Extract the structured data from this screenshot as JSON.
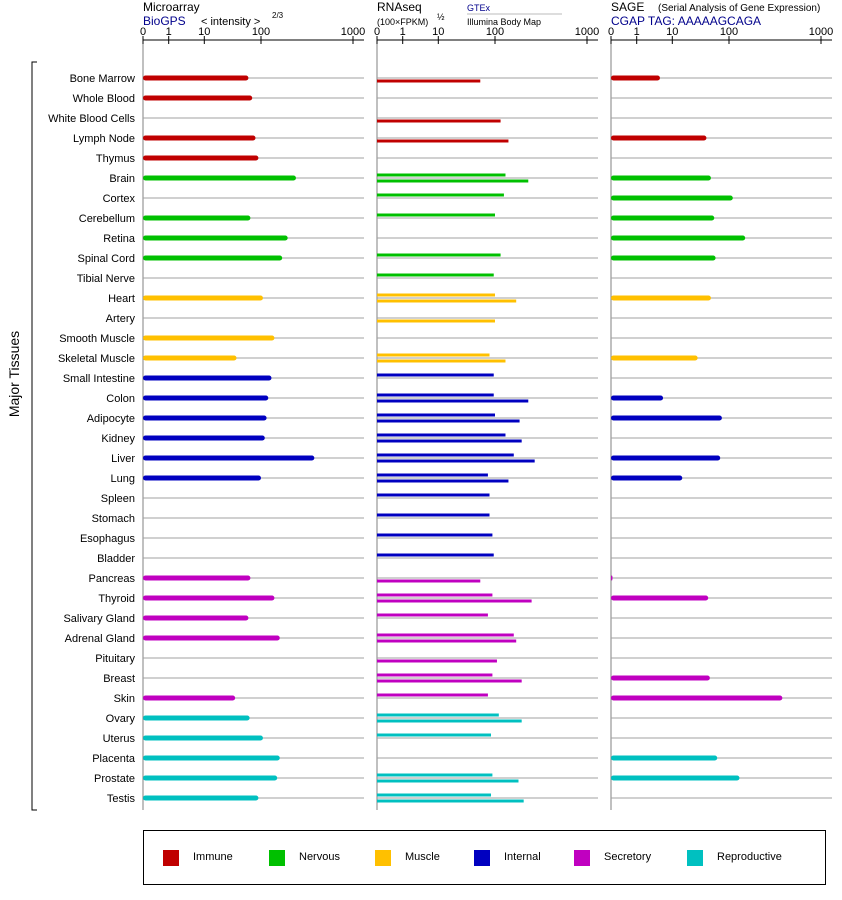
{
  "panels": [
    {
      "title": "Microarray",
      "subtitle": "BioGPS",
      "unit": "< intensity >",
      "unit_exp": "2/3",
      "subtitle2": ""
    },
    {
      "title": "RNAseq",
      "subtitle": "(100×FPKM)",
      "unit": "",
      "unit_exp": "½",
      "source1": "GTEx",
      "source2": "Illumina Body Map"
    },
    {
      "title": "SAGE",
      "subtitle": "CGAP TAG: AAAAAGCAGA",
      "unit": "(Serial Analysis of Gene Expression)",
      "unit_exp": ""
    }
  ],
  "tick_labels": [
    "0",
    "1",
    "10",
    "100",
    "1000"
  ],
  "y_axis_label": "Major Tissues",
  "colors": {
    "Immune": "#c00000",
    "Nervous": "#00c000",
    "Muscle": "#ffc000",
    "Internal": "#0000c0",
    "Secretory": "#c000c0",
    "Reproductive": "#00c0c0"
  },
  "legend": [
    "Immune",
    "Nervous",
    "Muscle",
    "Internal",
    "Secretory",
    "Reproductive"
  ],
  "chart_data": {
    "type": "bar",
    "orientation": "horizontal",
    "scale": "log-like (0,1,10,100,1000)",
    "xlim": [
      0,
      1000
    ],
    "categories": [
      "Bone Marrow",
      "Whole Blood",
      "White Blood Cells",
      "Lymph Node",
      "Thymus",
      "Brain",
      "Cortex",
      "Cerebellum",
      "Retina",
      "Spinal Cord",
      "Tibial Nerve",
      "Heart",
      "Artery",
      "Smooth Muscle",
      "Skeletal Muscle",
      "Small Intestine",
      "Colon",
      "Adipocyte",
      "Kidney",
      "Liver",
      "Lung",
      "Spleen",
      "Stomach",
      "Esophagus",
      "Bladder",
      "Pancreas",
      "Thyroid",
      "Salivary Gland",
      "Adrenal Gland",
      "Pituitary",
      "Breast",
      "Skin",
      "Ovary",
      "Uterus",
      "Placenta",
      "Prostate",
      "Testis"
    ],
    "groups": [
      "Immune",
      "Immune",
      "Immune",
      "Immune",
      "Immune",
      "Nervous",
      "Nervous",
      "Nervous",
      "Nervous",
      "Nervous",
      "Nervous",
      "Muscle",
      "Muscle",
      "Muscle",
      "Muscle",
      "Internal",
      "Internal",
      "Internal",
      "Internal",
      "Internal",
      "Internal",
      "Internal",
      "Internal",
      "Internal",
      "Internal",
      "Secretory",
      "Secretory",
      "Secretory",
      "Secretory",
      "Secretory",
      "Secretory",
      "Secretory",
      "Reproductive",
      "Reproductive",
      "Reproductive",
      "Reproductive",
      "Reproductive"
    ],
    "series": [
      {
        "name": "Microarray",
        "values": [
          60,
          70,
          null,
          80,
          90,
          240,
          null,
          65,
          195,
          170,
          null,
          105,
          null,
          140,
          37,
          130,
          120,
          115,
          110,
          380,
          100,
          null,
          null,
          null,
          null,
          65,
          140,
          60,
          160,
          null,
          null,
          35,
          63,
          105,
          160,
          150,
          90
        ]
      },
      {
        "name": "GTEx",
        "values": [
          null,
          null,
          null,
          null,
          null,
          130,
          125,
          100,
          null,
          115,
          95,
          100,
          null,
          null,
          80,
          95,
          95,
          100,
          130,
          160,
          75,
          80,
          80,
          90,
          95,
          null,
          90,
          75,
          160,
          null,
          90,
          75,
          110,
          85,
          null,
          90,
          85
        ]
      },
      {
        "name": "Illumina Body Map",
        "values": [
          55,
          null,
          115,
          140,
          null,
          230,
          null,
          null,
          null,
          null,
          null,
          170,
          100,
          null,
          130,
          null,
          230,
          185,
          195,
          270,
          140,
          null,
          null,
          null,
          null,
          55,
          250,
          null,
          170,
          105,
          195,
          null,
          195,
          null,
          null,
          180,
          205
        ]
      },
      {
        "name": "SAGE",
        "values": [
          4.5,
          null,
          null,
          40,
          null,
          48,
          110,
          55,
          150,
          58,
          null,
          48,
          null,
          null,
          28,
          null,
          5.5,
          75,
          null,
          70,
          15,
          null,
          null,
          null,
          null,
          0.05,
          43,
          null,
          null,
          null,
          46,
          380,
          null,
          null,
          62,
          130,
          null
        ]
      }
    ]
  }
}
